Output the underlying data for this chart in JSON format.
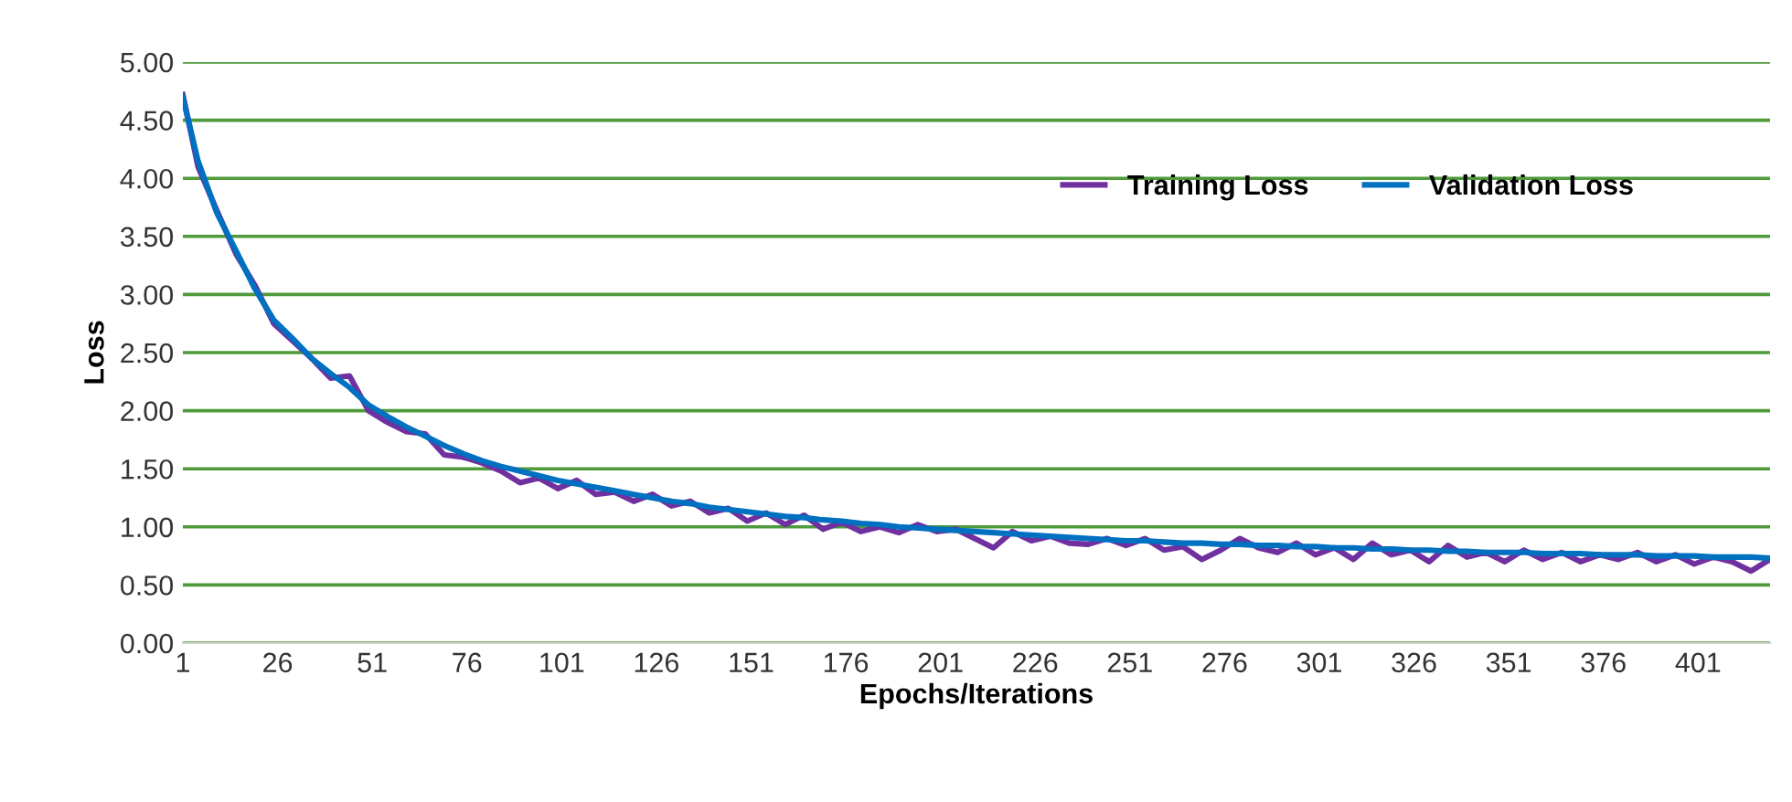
{
  "chart_data": {
    "type": "line",
    "xlabel": "Epochs/Iterations",
    "ylabel": "Loss",
    "x": [
      1,
      5,
      10,
      15,
      20,
      25,
      30,
      35,
      40,
      45,
      50,
      55,
      60,
      65,
      70,
      75,
      80,
      85,
      90,
      95,
      100,
      105,
      110,
      115,
      120,
      125,
      130,
      135,
      140,
      145,
      150,
      155,
      160,
      165,
      170,
      175,
      180,
      185,
      190,
      195,
      200,
      205,
      210,
      215,
      220,
      225,
      230,
      235,
      240,
      245,
      250,
      255,
      260,
      265,
      270,
      275,
      280,
      285,
      290,
      295,
      300,
      305,
      310,
      315,
      320,
      325,
      330,
      335,
      340,
      345,
      350,
      355,
      360,
      365,
      370,
      375,
      380,
      385,
      390,
      395,
      400,
      405,
      410,
      415,
      420
    ],
    "series": [
      {
        "name": "Training Loss",
        "color": "#7030a0",
        "values": [
          4.72,
          4.1,
          3.72,
          3.35,
          3.08,
          2.75,
          2.6,
          2.45,
          2.28,
          2.3,
          2.0,
          1.9,
          1.82,
          1.8,
          1.62,
          1.6,
          1.55,
          1.48,
          1.38,
          1.42,
          1.33,
          1.4,
          1.28,
          1.3,
          1.22,
          1.28,
          1.18,
          1.22,
          1.12,
          1.16,
          1.05,
          1.12,
          1.02,
          1.1,
          0.98,
          1.04,
          0.96,
          1.0,
          0.95,
          1.02,
          0.96,
          0.98,
          0.9,
          0.82,
          0.96,
          0.88,
          0.92,
          0.86,
          0.85,
          0.9,
          0.84,
          0.9,
          0.8,
          0.83,
          0.72,
          0.8,
          0.9,
          0.82,
          0.78,
          0.86,
          0.76,
          0.82,
          0.72,
          0.86,
          0.76,
          0.8,
          0.7,
          0.84,
          0.74,
          0.78,
          0.7,
          0.8,
          0.72,
          0.78,
          0.7,
          0.76,
          0.72,
          0.78,
          0.7,
          0.76,
          0.68,
          0.74,
          0.7,
          0.62,
          0.72
        ]
      },
      {
        "name": "Validation Loss",
        "color": "#0070c0",
        "values": [
          4.7,
          4.15,
          3.7,
          3.38,
          3.05,
          2.78,
          2.62,
          2.45,
          2.32,
          2.2,
          2.05,
          1.95,
          1.86,
          1.78,
          1.7,
          1.63,
          1.57,
          1.52,
          1.48,
          1.44,
          1.4,
          1.37,
          1.34,
          1.31,
          1.28,
          1.25,
          1.22,
          1.2,
          1.17,
          1.15,
          1.13,
          1.11,
          1.09,
          1.08,
          1.06,
          1.05,
          1.03,
          1.02,
          1.0,
          0.99,
          0.98,
          0.97,
          0.96,
          0.95,
          0.94,
          0.93,
          0.92,
          0.91,
          0.9,
          0.89,
          0.88,
          0.88,
          0.87,
          0.86,
          0.86,
          0.85,
          0.85,
          0.84,
          0.84,
          0.83,
          0.83,
          0.82,
          0.82,
          0.81,
          0.81,
          0.8,
          0.8,
          0.79,
          0.79,
          0.78,
          0.78,
          0.78,
          0.77,
          0.77,
          0.77,
          0.76,
          0.76,
          0.76,
          0.75,
          0.75,
          0.75,
          0.74,
          0.74,
          0.74,
          0.73
        ]
      }
    ],
    "xlim": [
      1,
      420
    ],
    "xticks": [
      1,
      26,
      51,
      76,
      101,
      126,
      151,
      176,
      201,
      226,
      251,
      276,
      301,
      326,
      351,
      376,
      401
    ],
    "ylim": [
      0,
      5
    ],
    "yticks": [
      {
        "value": 0,
        "label": "0.00"
      },
      {
        "value": 0.5,
        "label": "0.50"
      },
      {
        "value": 1,
        "label": "1.00"
      },
      {
        "value": 1.5,
        "label": "1.50"
      },
      {
        "value": 2,
        "label": "2.00"
      },
      {
        "value": 2.5,
        "label": "2.50"
      },
      {
        "value": 3,
        "label": "3.00"
      },
      {
        "value": 3.5,
        "label": "3.50"
      },
      {
        "value": 4,
        "label": "4.00"
      },
      {
        "value": 4.5,
        "label": "4.50"
      },
      {
        "value": 5,
        "label": "5.00"
      }
    ],
    "grid": "y",
    "legend": "top right",
    "marker": "none",
    "line_style": "solid"
  }
}
